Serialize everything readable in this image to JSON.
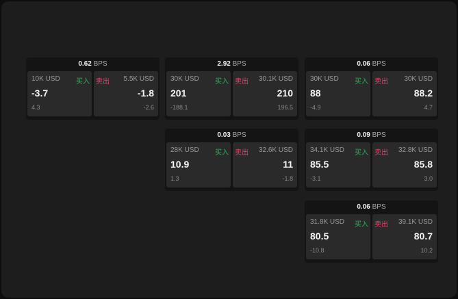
{
  "unit": "BPS",
  "buy_label": "买入",
  "sell_label": "卖出",
  "colors": {
    "buy": "#2fae5b",
    "sell": "#e0446a"
  },
  "widgets": [
    {
      "spread": "0.62",
      "buy": {
        "qty": "10K USD",
        "price": "-3.7",
        "change": "4.3"
      },
      "sell": {
        "qty": "5.5K USD",
        "price": "-1.8",
        "change": "-2.6"
      }
    },
    {
      "spread": "2.92",
      "buy": {
        "qty": "30K USD",
        "price": "201",
        "change": "-188.1"
      },
      "sell": {
        "qty": "30.1K USD",
        "price": "210",
        "change": "196.5"
      }
    },
    {
      "spread": "0.06",
      "buy": {
        "qty": "30K USD",
        "price": "88",
        "change": "-4.9"
      },
      "sell": {
        "qty": "30K USD",
        "price": "88.2",
        "change": "4.7"
      }
    },
    {
      "spread": "0.03",
      "buy": {
        "qty": "28K USD",
        "price": "10.9",
        "change": "1.3"
      },
      "sell": {
        "qty": "32.6K USD",
        "price": "11",
        "change": "-1.8"
      }
    },
    {
      "spread": "0.09",
      "buy": {
        "qty": "34.1K USD",
        "price": "85.5",
        "change": "-3.1"
      },
      "sell": {
        "qty": "32.8K USD",
        "price": "85.8",
        "change": "3.0"
      }
    },
    {
      "spread": "0.06",
      "buy": {
        "qty": "31.8K USD",
        "price": "80.5",
        "change": "-10.8"
      },
      "sell": {
        "qty": "39.1K USD",
        "price": "80.7",
        "change": "10.2"
      }
    }
  ]
}
